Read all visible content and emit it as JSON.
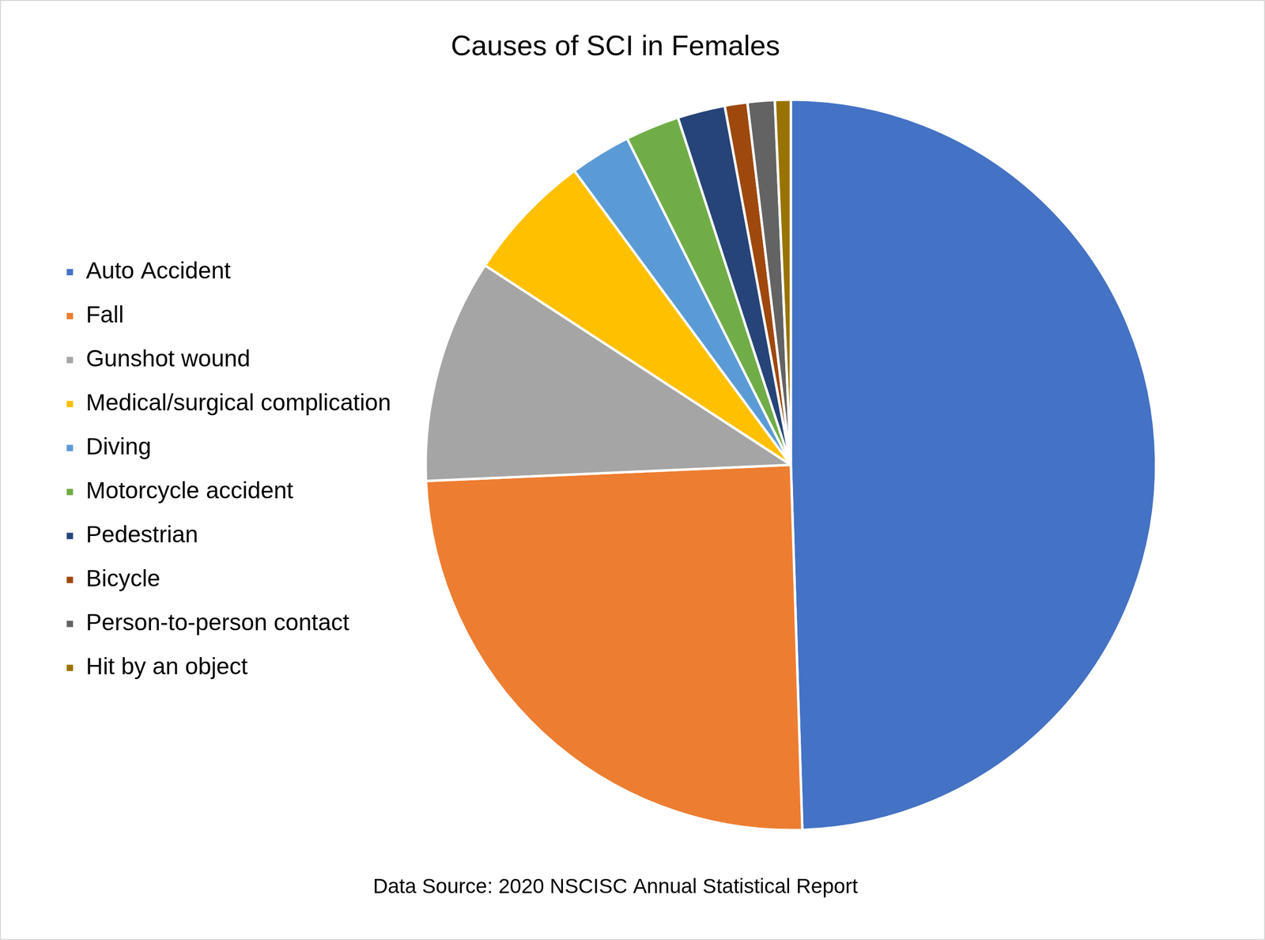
{
  "chart_data": {
    "type": "pie",
    "title": "Causes of SCI in Females",
    "source": "Data Source: 2020 NSCISC Annual Statistical Report",
    "categories": [
      "Auto Accident",
      "Fall",
      "Gunshot wound",
      "Medical/surgical complication",
      "Diving",
      "Motorcycle accident",
      "Pedestrian",
      "Bicycle",
      "Person-to-person contact",
      "Hit by an object"
    ],
    "values": [
      49.5,
      24.8,
      9.9,
      5.7,
      2.7,
      2.4,
      2.1,
      1.0,
      1.2,
      0.7
    ],
    "colors": [
      "#4472c4",
      "#ed7d31",
      "#a5a5a5",
      "#ffc000",
      "#5b9bd5",
      "#70ad47",
      "#264478",
      "#9e480e",
      "#636363",
      "#997300"
    ],
    "legend": "left",
    "data_labels": false
  }
}
